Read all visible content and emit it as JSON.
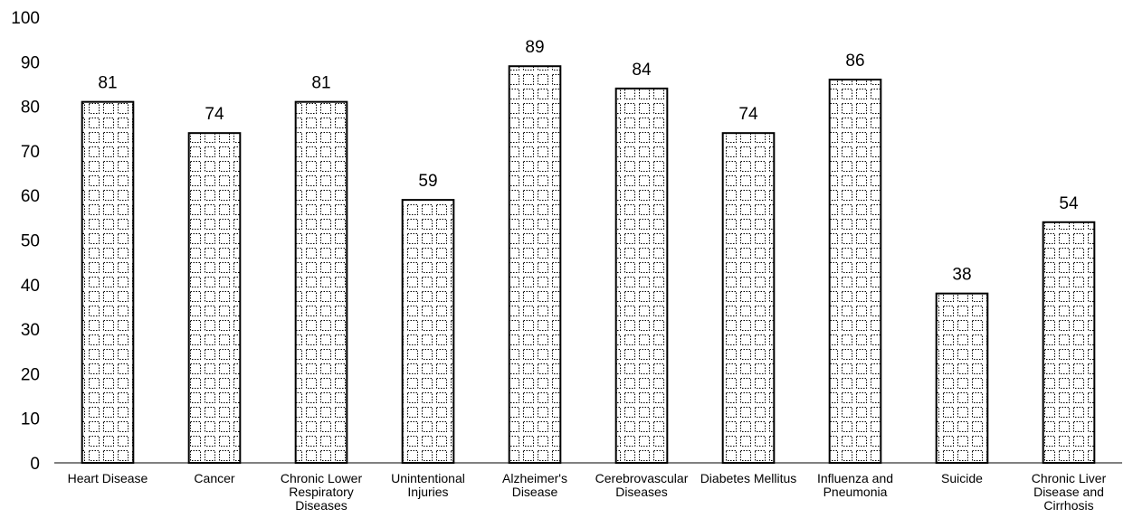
{
  "chart_data": {
    "type": "bar",
    "categories": [
      [
        "Heart Disease"
      ],
      [
        "Cancer"
      ],
      [
        "Chronic Lower",
        "Respiratory",
        "Diseases"
      ],
      [
        "Unintentional",
        "Injuries"
      ],
      [
        "Alzheimer's",
        "Disease"
      ],
      [
        "Cerebrovascular",
        "Diseases"
      ],
      [
        "Diabetes Mellitus"
      ],
      [
        "Influenza and",
        "Pneumonia"
      ],
      [
        "Suicide"
      ],
      [
        "Chronic Liver",
        "Disease and",
        "Cirrhosis"
      ]
    ],
    "values": [
      81,
      74,
      81,
      59,
      89,
      84,
      74,
      86,
      38,
      54
    ],
    "data_labels": [
      "81",
      "74",
      "81",
      "59",
      "89",
      "84",
      "74",
      "86",
      "38",
      "54"
    ],
    "title": "",
    "xlabel": "",
    "ylabel": "",
    "ylim": [
      0,
      100
    ],
    "yticks": [
      "0",
      "10",
      "20",
      "30",
      "40",
      "50",
      "60",
      "70",
      "80",
      "90",
      "100"
    ],
    "grid": false,
    "legend": "none",
    "bar_fill": "dotted-grid-pattern",
    "colors": {
      "bar_stroke": "#000000",
      "pattern": "#000000",
      "background": "#ffffff"
    }
  }
}
